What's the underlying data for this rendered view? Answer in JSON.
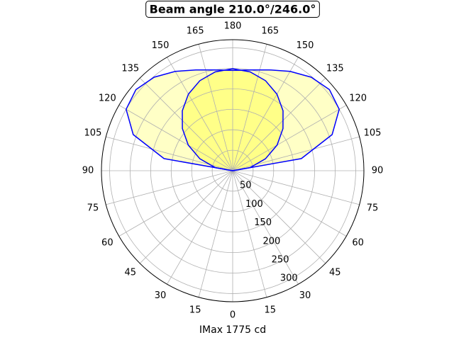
{
  "chart_data": {
    "type": "polar",
    "title": "Beam angle 210.0°/246.0°",
    "xlabel": "IMax 1775 cd",
    "x": [
      90,
      100,
      110,
      120,
      130,
      140,
      150,
      160,
      170,
      180,
      190,
      200,
      210,
      220,
      230,
      240,
      250,
      260,
      270
    ],
    "series": [
      {
        "color": "#0000ff",
        "fill": "#ffffc6",
        "values": [
          0,
          170,
          258,
          300,
          308,
          298,
          280,
          262,
          250,
          245,
          250,
          262,
          280,
          298,
          308,
          300,
          258,
          170,
          0
        ]
      },
      {
        "color": "#0000ff",
        "fill": "#ffff88",
        "values": [
          0,
          43,
          85,
          125,
          160,
          191,
          216,
          234,
          245,
          249,
          245,
          234,
          216,
          191,
          160,
          125,
          85,
          43,
          0
        ]
      }
    ],
    "rlim": [
      0,
      320
    ],
    "rticks": [
      50,
      100,
      150,
      200,
      250,
      300
    ],
    "thetaticks": [
      0,
      15,
      30,
      45,
      60,
      75,
      90,
      105,
      120,
      135,
      150,
      165,
      180,
      {
        "value": 195,
        "label": "165"
      },
      {
        "value": 210,
        "label": "150"
      },
      {
        "value": 225,
        "label": "135"
      },
      {
        "value": 240,
        "label": "120"
      },
      {
        "value": 255,
        "label": "105"
      },
      {
        "value": 270,
        "label": "90"
      },
      {
        "value": 285,
        "label": "75"
      },
      {
        "value": 300,
        "label": "60"
      },
      {
        "value": 315,
        "label": "45"
      },
      {
        "value": 330,
        "label": "30"
      },
      {
        "value": 345,
        "label": "15"
      }
    ],
    "grid": true
  }
}
